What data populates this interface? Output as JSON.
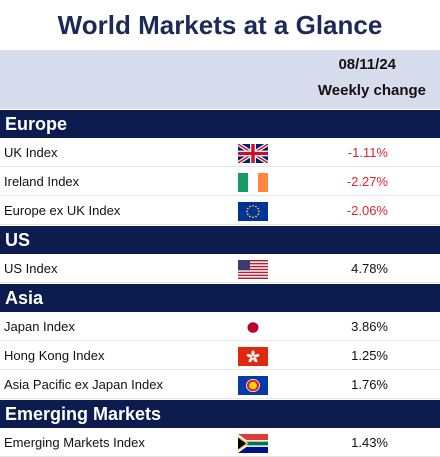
{
  "title": "World Markets at a Glance",
  "date": "08/11/24",
  "column_header": "Weekly change",
  "sections": [
    {
      "name": "Europe",
      "rows": [
        {
          "name": "UK Index",
          "flag": "uk-flag-icon",
          "value": "-1.11%",
          "sign": "neg"
        },
        {
          "name": "Ireland Index",
          "flag": "ireland-flag-icon",
          "value": "-2.27%",
          "sign": "neg"
        },
        {
          "name": "Europe ex UK Index",
          "flag": "eu-flag-icon",
          "value": "-2.06%",
          "sign": "neg"
        }
      ]
    },
    {
      "name": "US",
      "rows": [
        {
          "name": "US Index",
          "flag": "us-flag-icon",
          "value": "4.78%",
          "sign": "pos"
        }
      ]
    },
    {
      "name": "Asia",
      "rows": [
        {
          "name": "Japan Index",
          "flag": "japan-flag-icon",
          "value": "3.86%",
          "sign": "pos"
        },
        {
          "name": "Hong Kong Index",
          "flag": "hong-kong-flag-icon",
          "value": "1.25%",
          "sign": "pos"
        },
        {
          "name": "Asia Pacific ex Japan Index",
          "flag": "asean-flag-icon",
          "value": "1.76%",
          "sign": "pos"
        }
      ]
    },
    {
      "name": "Emerging Markets",
      "rows": [
        {
          "name": "Emerging Markets Index",
          "flag": "south-africa-flag-icon",
          "value": "1.43%",
          "sign": "pos"
        }
      ]
    }
  ],
  "colors": {
    "navy": "#0c1c4e",
    "title": "#1b2a57",
    "band": "#d6dcec",
    "negative": "#e0232a"
  }
}
